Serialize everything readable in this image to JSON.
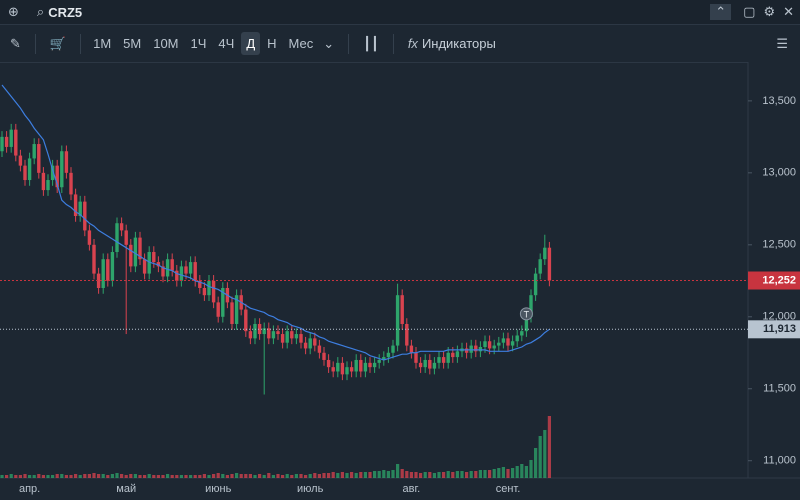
{
  "toolbar": {
    "symbol": "CRZ5",
    "timeframes": [
      "1M",
      "5M",
      "10M",
      "1Ч",
      "4Ч",
      "Д",
      "Н",
      "Мес"
    ],
    "active_timeframe": "Д",
    "indicators": "Индикаторы"
  },
  "chart_data": {
    "type": "candlestick",
    "categories": [
      null,
      null,
      null,
      null,
      null,
      null,
      "апр.",
      null,
      null,
      null,
      null,
      null,
      null,
      null,
      null,
      null,
      null,
      null,
      null,
      null,
      null,
      null,
      null,
      null,
      null,
      null,
      null,
      "май",
      null,
      null,
      null,
      null,
      null,
      null,
      null,
      null,
      null,
      null,
      null,
      null,
      null,
      null,
      null,
      null,
      null,
      null,
      null,
      "июнь",
      null,
      null,
      null,
      null,
      null,
      null,
      null,
      null,
      null,
      null,
      null,
      null,
      null,
      null,
      null,
      null,
      null,
      null,
      null,
      "июль",
      null,
      null,
      null,
      null,
      null,
      null,
      null,
      null,
      null,
      null,
      null,
      null,
      null,
      null,
      null,
      null,
      null,
      null,
      null,
      null,
      null,
      "авг.",
      null,
      null,
      null,
      null,
      null,
      null,
      null,
      null,
      null,
      null,
      null,
      null,
      null,
      null,
      null,
      null,
      null,
      null,
      null,
      null,
      "сент.",
      null,
      null,
      null,
      null,
      null,
      null,
      null,
      null,
      null
    ],
    "open": [
      13150,
      13250,
      13180,
      13300,
      13120,
      13050,
      12950,
      13100,
      13200,
      13000,
      12880,
      12950,
      13050,
      12900,
      13150,
      13000,
      12850,
      12700,
      12800,
      12600,
      12500,
      12300,
      12200,
      12400,
      12250,
      12450,
      12650,
      12600,
      12500,
      12350,
      12550,
      12400,
      12300,
      12450,
      12380,
      12350,
      12280,
      12400,
      12320,
      12250,
      12350,
      12300,
      12380,
      12250,
      12200,
      12150,
      12250,
      12100,
      12000,
      12200,
      12100,
      11950,
      12150,
      12050,
      11900,
      11850,
      11950,
      11880,
      11920,
      11850,
      11900,
      11880,
      11820,
      11900,
      11850,
      11880,
      11820,
      11780,
      11850,
      11800,
      11750,
      11700,
      11650,
      11620,
      11680,
      11600,
      11650,
      11620,
      11700,
      11620,
      11680,
      11650,
      11680,
      11700,
      11720,
      11750,
      11800,
      12150,
      11950,
      11800,
      11750,
      11680,
      11650,
      11700,
      11640,
      11680,
      11720,
      11680,
      11750,
      11720,
      11760,
      11780,
      11750,
      11800,
      11760,
      11790,
      11830,
      11780,
      11800,
      11820,
      11850,
      11800,
      11830,
      11870,
      11900,
      12000,
      12150,
      12300,
      12400,
      12480
    ],
    "high": [
      13290,
      13290,
      13340,
      13340,
      13160,
      13090,
      13140,
      13240,
      13240,
      13040,
      12990,
      13090,
      13090,
      13190,
      13190,
      13040,
      12890,
      12840,
      12840,
      12640,
      12540,
      12340,
      12440,
      12440,
      12490,
      12690,
      12690,
      12640,
      12540,
      12590,
      12590,
      12440,
      12490,
      12490,
      12420,
      12390,
      12440,
      12440,
      12360,
      12390,
      12390,
      12420,
      12420,
      12290,
      12240,
      12290,
      12290,
      12140,
      12240,
      12240,
      12140,
      12190,
      12190,
      12090,
      11940,
      11990,
      11990,
      11960,
      11960,
      11940,
      11940,
      11920,
      11940,
      11940,
      11920,
      11920,
      11860,
      11890,
      11890,
      11840,
      11790,
      11740,
      11690,
      11720,
      11720,
      11690,
      11690,
      11740,
      11740,
      11720,
      11720,
      11720,
      11740,
      11760,
      11790,
      11840,
      12230,
      12190,
      11990,
      11840,
      11790,
      11720,
      11740,
      11740,
      11720,
      11760,
      11760,
      11790,
      11790,
      11800,
      11820,
      11820,
      11840,
      11840,
      11830,
      11870,
      11870,
      11840,
      11860,
      11890,
      11890,
      11870,
      11910,
      11940,
      12040,
      12190,
      12340,
      12440,
      12570,
      12520
    ],
    "low": [
      13110,
      13140,
      13140,
      13080,
      13010,
      12910,
      12910,
      13060,
      12960,
      12840,
      12840,
      12910,
      12860,
      12860,
      12960,
      12810,
      12660,
      12660,
      12560,
      12460,
      12260,
      12160,
      12160,
      12210,
      12210,
      12410,
      12560,
      11880,
      12310,
      12310,
      12360,
      12260,
      12260,
      12340,
      12310,
      12240,
      12240,
      12280,
      12210,
      12210,
      12260,
      12260,
      12210,
      12160,
      12110,
      12110,
      12060,
      11960,
      11960,
      12060,
      11910,
      11910,
      12010,
      11860,
      11810,
      11810,
      11840,
      11460,
      11810,
      11810,
      11840,
      11780,
      11780,
      11810,
      11810,
      11780,
      11740,
      11740,
      11760,
      11710,
      11660,
      11610,
      11580,
      11580,
      11560,
      11560,
      11580,
      11580,
      11580,
      11580,
      11610,
      11610,
      11640,
      11660,
      11680,
      11710,
      11760,
      11910,
      11760,
      11710,
      11640,
      11610,
      11610,
      11600,
      11600,
      11640,
      11640,
      11640,
      11680,
      11680,
      11720,
      11710,
      11710,
      11720,
      11720,
      11750,
      11740,
      11740,
      11760,
      11780,
      11760,
      11760,
      11790,
      11830,
      11860,
      11960,
      12110,
      12260,
      12360,
      12212
    ],
    "close": [
      13250,
      13180,
      13300,
      13120,
      13050,
      12950,
      13100,
      13200,
      13000,
      12880,
      12950,
      13050,
      12900,
      13150,
      13000,
      12850,
      12700,
      12800,
      12600,
      12500,
      12300,
      12200,
      12400,
      12250,
      12450,
      12650,
      12600,
      12500,
      12350,
      12550,
      12400,
      12300,
      12450,
      12380,
      12350,
      12280,
      12400,
      12320,
      12250,
      12350,
      12300,
      12380,
      12250,
      12200,
      12150,
      12250,
      12100,
      12000,
      12200,
      12100,
      11950,
      12150,
      12050,
      11900,
      11850,
      11950,
      11880,
      11920,
      11850,
      11900,
      11880,
      11820,
      11900,
      11850,
      11880,
      11820,
      11780,
      11850,
      11800,
      11750,
      11700,
      11650,
      11620,
      11680,
      11600,
      11650,
      11620,
      11700,
      11620,
      11680,
      11650,
      11680,
      11700,
      11720,
      11750,
      11800,
      12150,
      11950,
      11800,
      11750,
      11680,
      11650,
      11700,
      11640,
      11680,
      11720,
      11680,
      11750,
      11720,
      11760,
      11780,
      11750,
      11800,
      11760,
      11790,
      11830,
      11780,
      11800,
      11820,
      11850,
      11800,
      11830,
      11870,
      11900,
      12000,
      12150,
      12300,
      12400,
      12480,
      12252
    ],
    "colors": {
      "up": "#2ea56b",
      "down": "#d9434f"
    },
    "ma": {
      "color": "#3d7ee0",
      "values": [
        13610,
        13570,
        13530,
        13490,
        13450,
        13400,
        13360,
        13310,
        13270,
        13230,
        13130,
        13020,
        12920,
        12810,
        12780,
        12760,
        12730,
        12710,
        12680,
        12650,
        12630,
        12600,
        12580,
        12560,
        12540,
        12520,
        12500,
        12480,
        12460,
        12440,
        12420,
        12400,
        12380,
        12370,
        12360,
        12340,
        12330,
        12320,
        12300,
        12290,
        12280,
        12270,
        12250,
        12240,
        12230,
        12210,
        12200,
        12190,
        12170,
        12150,
        12130,
        12120,
        12100,
        12080,
        12060,
        12050,
        12040,
        12030,
        12010,
        12000,
        11980,
        11970,
        11960,
        11940,
        11930,
        11920,
        11900,
        11890,
        11880,
        11860,
        11850,
        11830,
        11820,
        11810,
        11800,
        11790,
        11780,
        11770,
        11760,
        11750,
        11730,
        11720,
        11710,
        11700,
        11710,
        11720,
        11730,
        11740,
        11740,
        11750,
        11750,
        11760,
        11760,
        11760,
        11760,
        11760,
        11760,
        11770,
        11770,
        11770,
        11770,
        11770,
        11770,
        11770,
        11770,
        11770,
        11760,
        11760,
        11760,
        11760,
        11760,
        11770,
        11780,
        11790,
        11810,
        11820,
        11840,
        11860,
        11890,
        11913
      ]
    },
    "volume": [
      3,
      3,
      4,
      3,
      3,
      4,
      3,
      3,
      4,
      3,
      3,
      3,
      4,
      4,
      3,
      3,
      4,
      3,
      4,
      4,
      5,
      4,
      4,
      3,
      4,
      5,
      4,
      3,
      4,
      4,
      3,
      3,
      4,
      3,
      3,
      3,
      4,
      3,
      3,
      3,
      3,
      3,
      3,
      3,
      4,
      3,
      4,
      5,
      4,
      3,
      4,
      5,
      4,
      4,
      4,
      3,
      4,
      3,
      5,
      3,
      4,
      3,
      4,
      3,
      4,
      4,
      3,
      4,
      5,
      4,
      5,
      5,
      6,
      5,
      6,
      5,
      6,
      5,
      6,
      6,
      6,
      7,
      7,
      8,
      7,
      8,
      14,
      9,
      7,
      6,
      6,
      5,
      6,
      6,
      5,
      6,
      6,
      7,
      6,
      7,
      7,
      6,
      7,
      7,
      8,
      8,
      8,
      9,
      10,
      11,
      9,
      10,
      12,
      14,
      12,
      18,
      30,
      42,
      48,
      62
    ],
    "ylim": [
      10880,
      13770
    ],
    "yticks": [
      {
        "value": 11000,
        "label": "11,000"
      },
      {
        "value": 11500,
        "label": "11,500"
      },
      {
        "value": 12000,
        "label": "12,000"
      },
      {
        "value": 12500,
        "label": "12,500"
      },
      {
        "value": 13000,
        "label": "13,000"
      },
      {
        "value": 13500,
        "label": "13,500"
      }
    ],
    "price_tags": [
      {
        "value": 12252,
        "label": "12,252",
        "color": "#c8343f"
      },
      {
        "value": 11913,
        "label": "11,913",
        "color": "#b8c4d0"
      }
    ],
    "annotations": [
      {
        "text": "T",
        "at": 114,
        "value": 12020
      }
    ]
  }
}
